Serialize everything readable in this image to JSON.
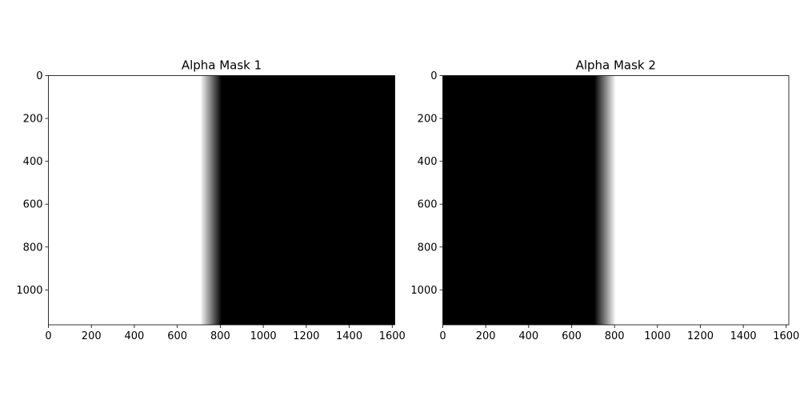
{
  "chart_data": [
    {
      "type": "heatmap",
      "title": "Alpha Mask 1",
      "xlim": [
        0,
        1612
      ],
      "ylim": [
        1163,
        0
      ],
      "y_inverted": true,
      "xticks": [
        0,
        200,
        400,
        600,
        800,
        1000,
        1200,
        1400,
        1600
      ],
      "yticks": [
        0,
        200,
        400,
        600,
        800,
        1000
      ],
      "colormap": "gray",
      "value_range": [
        0,
        1
      ],
      "profile": {
        "description_axis": "x",
        "transition_start": 706,
        "transition_end": 806,
        "value_before": 1,
        "value_after": 0
      },
      "grid": false
    },
    {
      "type": "heatmap",
      "title": "Alpha Mask 2",
      "xlim": [
        0,
        1612
      ],
      "ylim": [
        1163,
        0
      ],
      "y_inverted": true,
      "xticks": [
        0,
        200,
        400,
        600,
        800,
        1000,
        1200,
        1400,
        1600
      ],
      "yticks": [
        0,
        200,
        400,
        600,
        800,
        1000
      ],
      "colormap": "gray",
      "value_range": [
        0,
        1
      ],
      "profile": {
        "description_axis": "x",
        "transition_start": 706,
        "transition_end": 806,
        "value_before": 0,
        "value_after": 1
      },
      "grid": false
    }
  ],
  "colors": {
    "white": "#ffffff",
    "black": "#000000",
    "axis": "#000000"
  }
}
